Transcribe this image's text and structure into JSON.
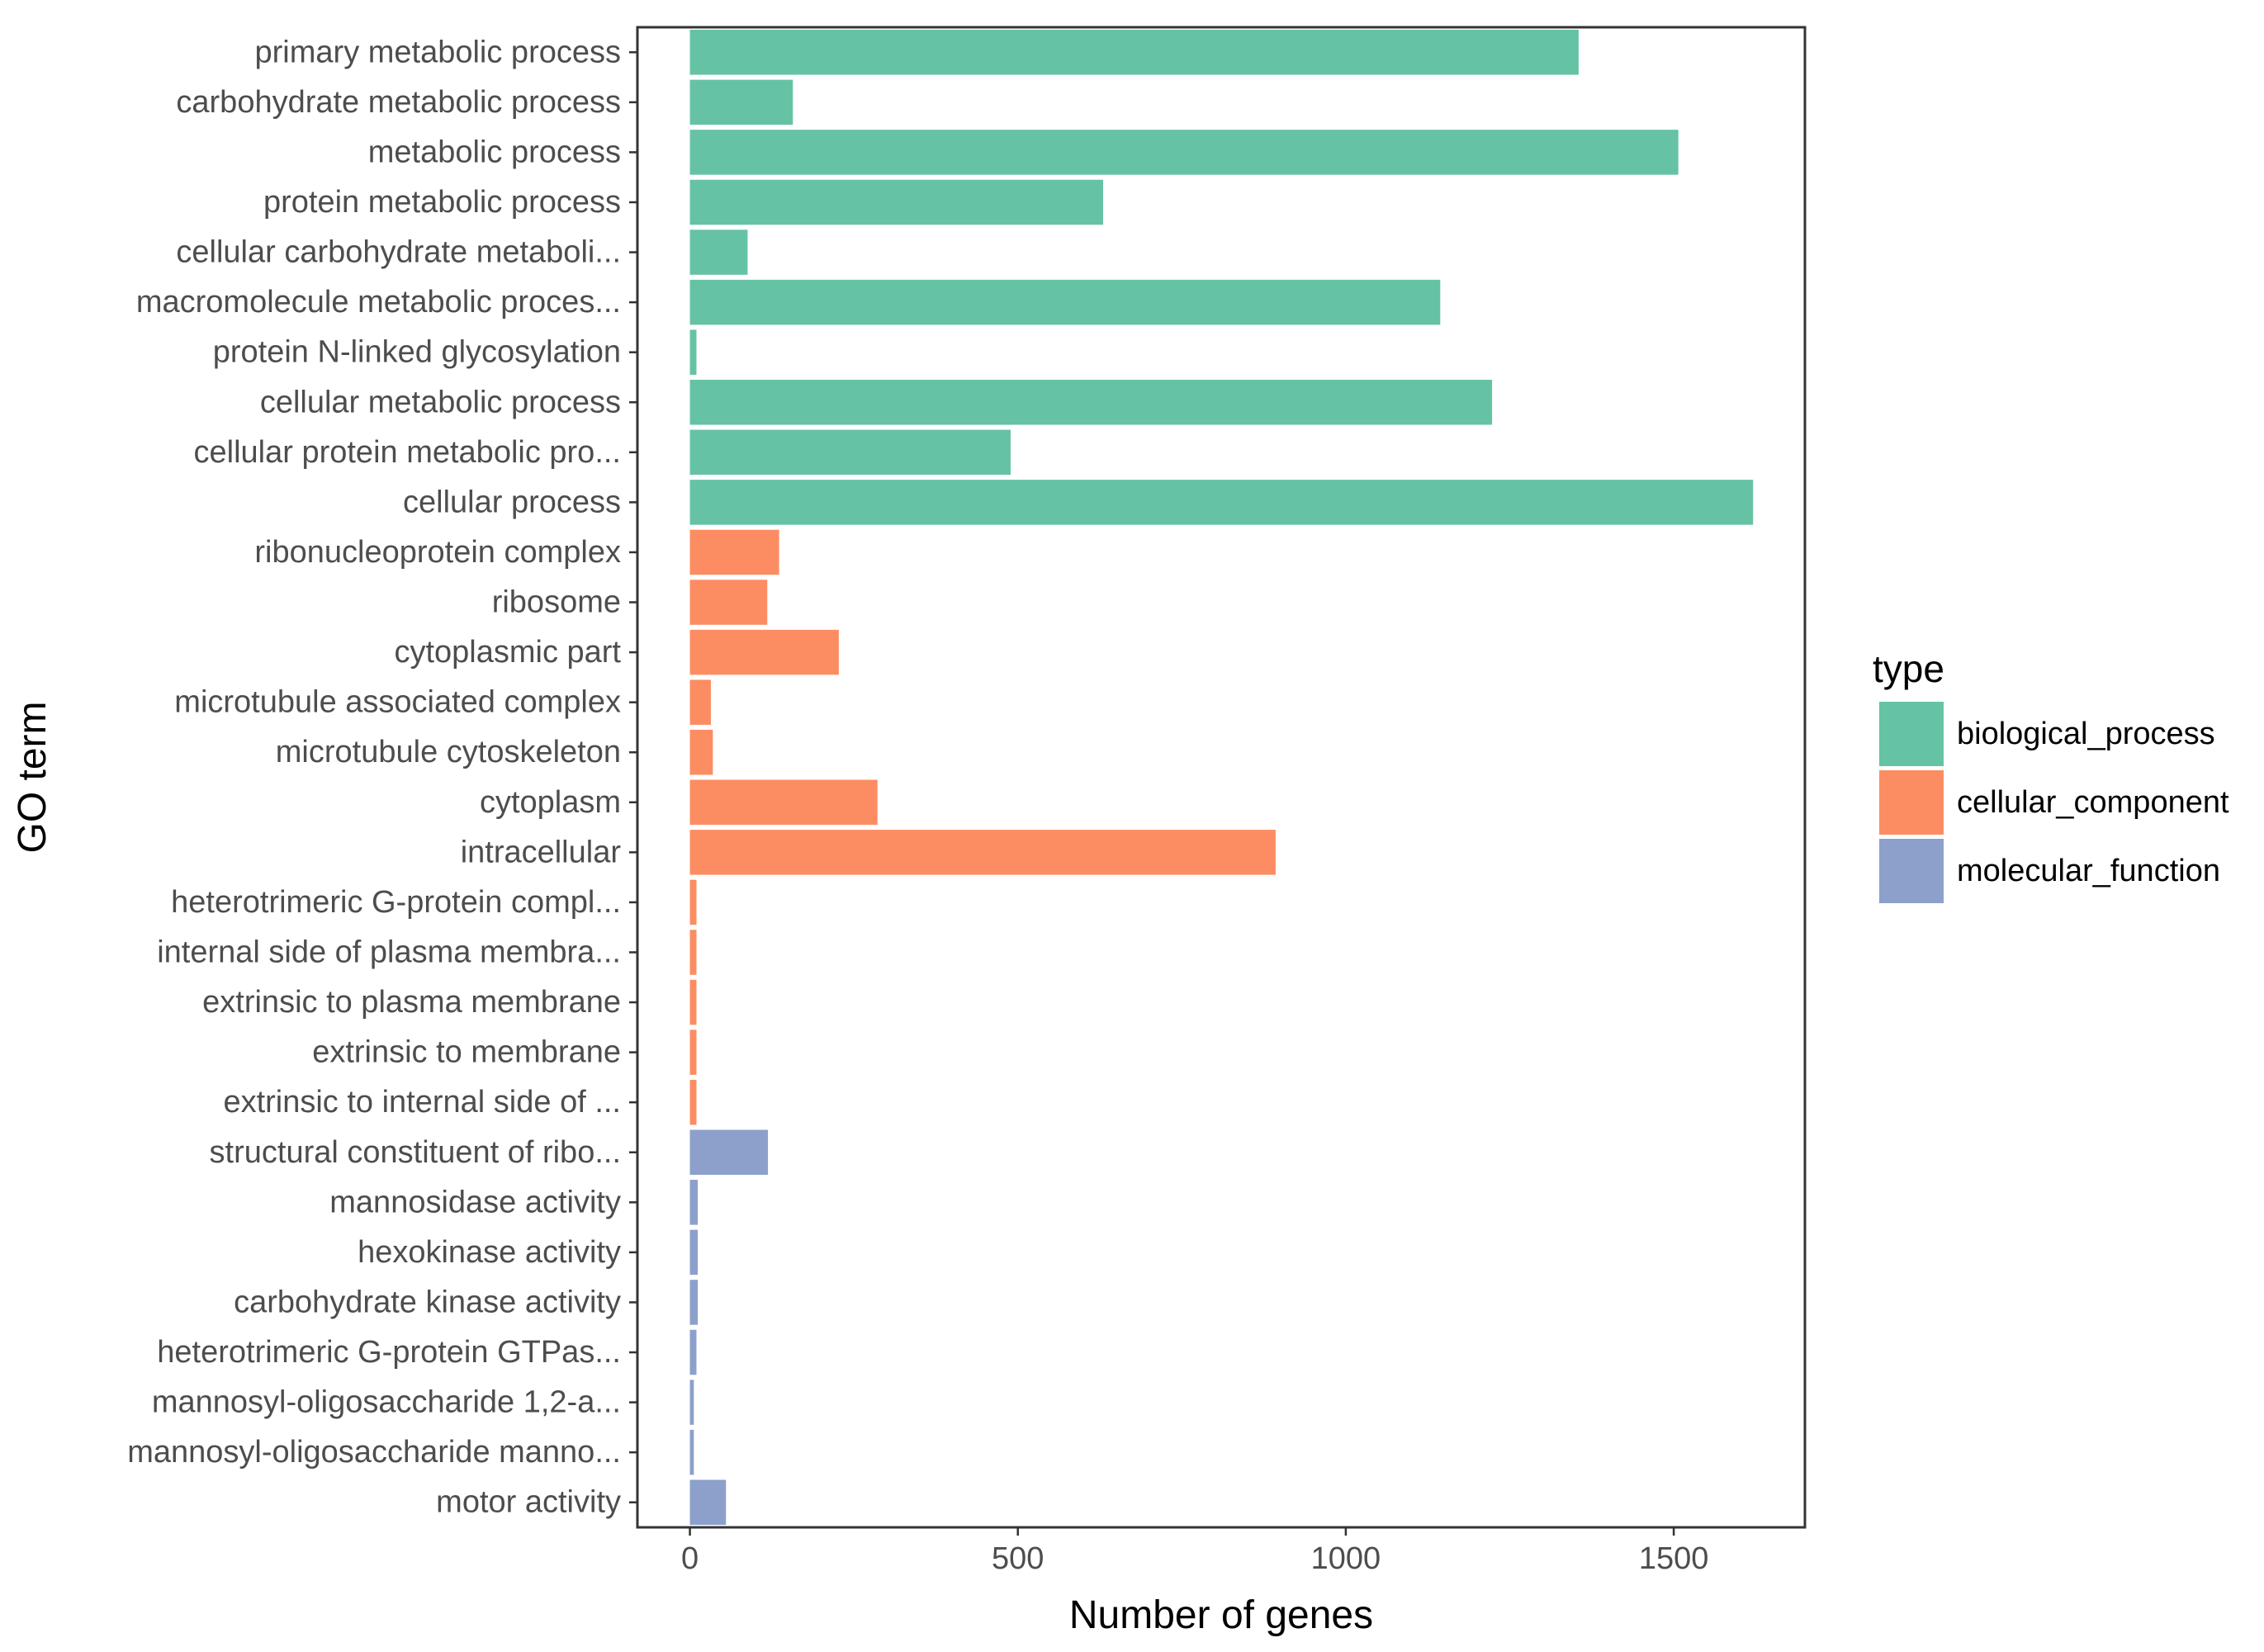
{
  "chart_data": {
    "type": "bar",
    "orientation": "horizontal",
    "xlabel": "Number of genes",
    "ylabel": "GO term",
    "xlim": [
      -80,
      1700
    ],
    "xticks": [
      0,
      500,
      1000,
      1500
    ],
    "xtick_labels": [
      "0",
      "500",
      "1000",
      "1500"
    ],
    "grid": false,
    "legend": {
      "title": "type",
      "position": "right",
      "entries": [
        {
          "label": "biological_process",
          "color": "#66c2a5"
        },
        {
          "label": "cellular_component",
          "color": "#fc8d62"
        },
        {
          "label": "molecular_function",
          "color": "#8da0cb"
        }
      ]
    },
    "bars": [
      {
        "category": "primary metabolic process",
        "value": 1355,
        "type": "biological_process"
      },
      {
        "category": "carbohydrate metabolic process",
        "value": 157,
        "type": "biological_process"
      },
      {
        "category": "metabolic process",
        "value": 1507,
        "type": "biological_process"
      },
      {
        "category": "protein metabolic process",
        "value": 630,
        "type": "biological_process"
      },
      {
        "category": "cellular carbohydrate metaboli...",
        "value": 88,
        "type": "biological_process"
      },
      {
        "category": "macromolecule metabolic proces...",
        "value": 1144,
        "type": "biological_process"
      },
      {
        "category": "protein N-linked glycosylation",
        "value": 10,
        "type": "biological_process"
      },
      {
        "category": "cellular metabolic process",
        "value": 1223,
        "type": "biological_process"
      },
      {
        "category": "cellular protein metabolic pro...",
        "value": 489,
        "type": "biological_process"
      },
      {
        "category": "cellular process",
        "value": 1621,
        "type": "biological_process"
      },
      {
        "category": "ribonucleoprotein complex",
        "value": 136,
        "type": "cellular_component"
      },
      {
        "category": "ribosome",
        "value": 118,
        "type": "cellular_component"
      },
      {
        "category": "cytoplasmic part",
        "value": 227,
        "type": "cellular_component"
      },
      {
        "category": "microtubule associated complex",
        "value": 32,
        "type": "cellular_component"
      },
      {
        "category": "microtubule cytoskeleton",
        "value": 35,
        "type": "cellular_component"
      },
      {
        "category": "cytoplasm",
        "value": 286,
        "type": "cellular_component"
      },
      {
        "category": "intracellular",
        "value": 893,
        "type": "cellular_component"
      },
      {
        "category": "heterotrimeric G-protein compl...",
        "value": 10,
        "type": "cellular_component"
      },
      {
        "category": "internal side of plasma membra...",
        "value": 10,
        "type": "cellular_component"
      },
      {
        "category": "extrinsic to plasma membrane",
        "value": 10,
        "type": "cellular_component"
      },
      {
        "category": "extrinsic to membrane",
        "value": 10,
        "type": "cellular_component"
      },
      {
        "category": "extrinsic to internal side of ...",
        "value": 10,
        "type": "cellular_component"
      },
      {
        "category": "structural constituent of ribo...",
        "value": 119,
        "type": "molecular_function"
      },
      {
        "category": "mannosidase activity",
        "value": 12,
        "type": "molecular_function"
      },
      {
        "category": "hexokinase activity",
        "value": 12,
        "type": "molecular_function"
      },
      {
        "category": "carbohydrate kinase activity",
        "value": 12,
        "type": "molecular_function"
      },
      {
        "category": "heterotrimeric G-protein GTPas...",
        "value": 10,
        "type": "molecular_function"
      },
      {
        "category": "mannosyl-oligosaccharide 1,2-a...",
        "value": 6,
        "type": "molecular_function"
      },
      {
        "category": "mannosyl-oligosaccharide manno...",
        "value": 6,
        "type": "molecular_function"
      },
      {
        "category": "motor activity",
        "value": 55,
        "type": "molecular_function"
      }
    ]
  }
}
